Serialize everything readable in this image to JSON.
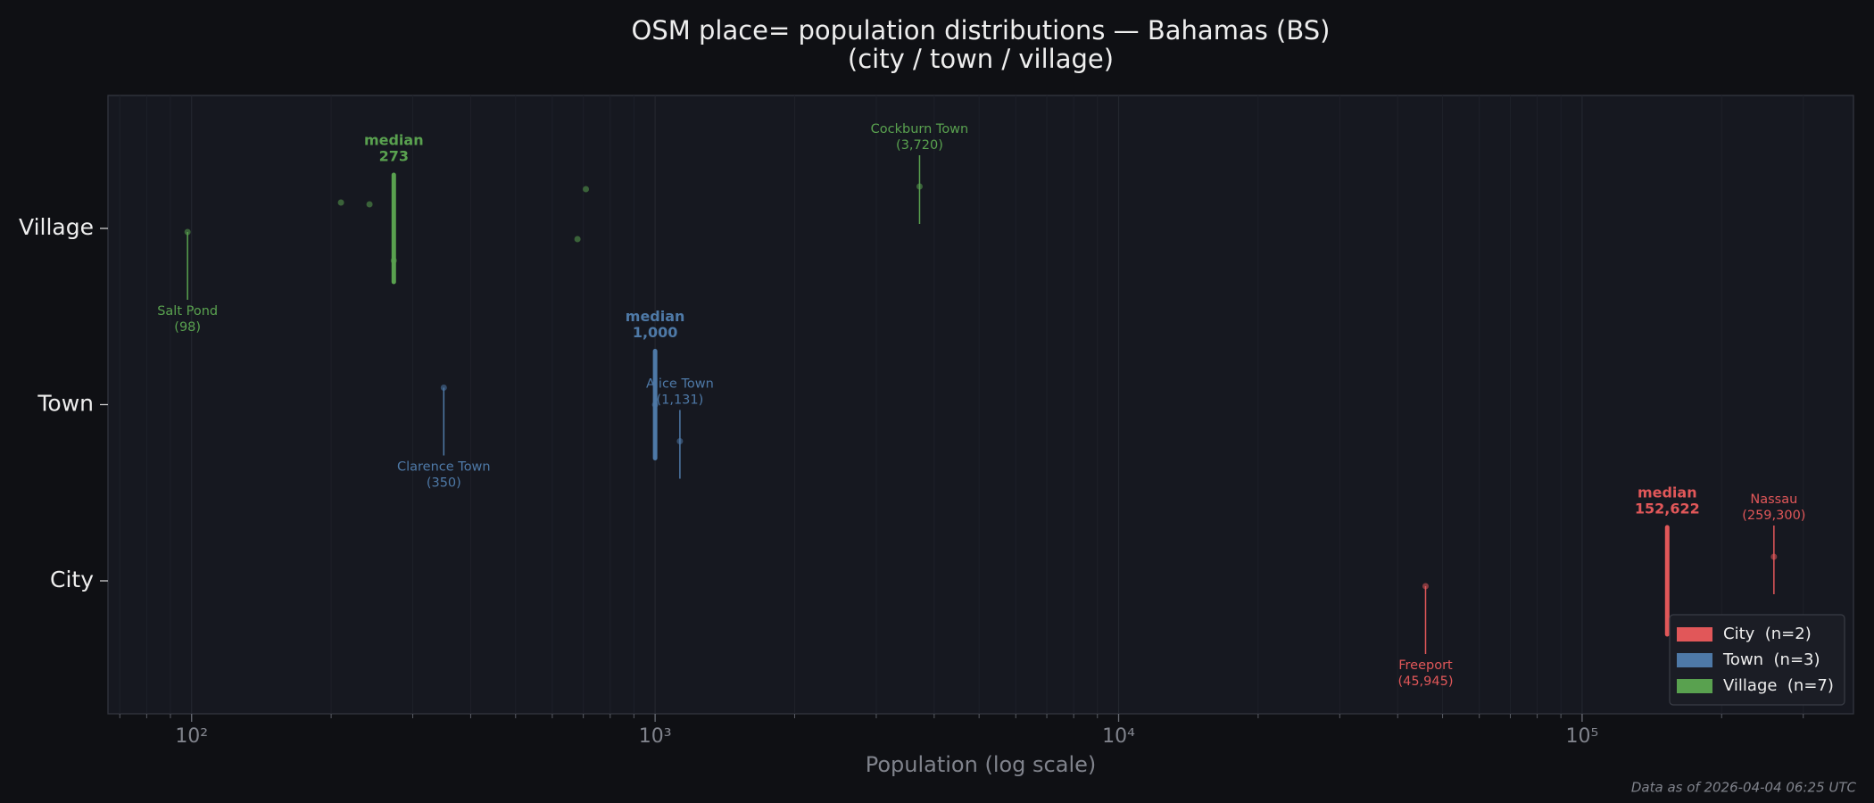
{
  "chart_data": {
    "type": "strip",
    "title": "OSM place= population distributions — Bahamas (BS)",
    "subtitle": "(city / town / village)",
    "x_label": "Population (log scale)",
    "footer": "Data as of 2026-04-04 06:25 UTC",
    "x_scale": "log",
    "xlim": [
      66,
      385000
    ],
    "xticks": [
      {
        "value": 100,
        "label": "10²"
      },
      {
        "value": 1000,
        "label": "10³"
      },
      {
        "value": 10000,
        "label": "10⁴"
      },
      {
        "value": 100000,
        "label": "10⁵"
      }
    ],
    "minor_xticks": [
      70,
      80,
      90,
      200,
      300,
      400,
      500,
      600,
      700,
      800,
      900,
      2000,
      3000,
      4000,
      5000,
      6000,
      7000,
      8000,
      9000,
      20000,
      30000,
      40000,
      50000,
      60000,
      70000,
      80000,
      90000,
      200000,
      300000
    ],
    "grid": true,
    "legend": "lower right",
    "categories": [
      "City",
      "Town",
      "Village"
    ],
    "median_text": "median",
    "series": [
      {
        "name": "City  (n=2)",
        "category": "City",
        "color": "#e15759",
        "values": [
          45945,
          259300
        ],
        "median": 152622,
        "median_label": "152,622",
        "annotations": [
          {
            "text": "Freeport",
            "value": 45945,
            "value_label": "(45,945)"
          },
          {
            "text": "Nassau",
            "value": 259300,
            "value_label": "(259,300)"
          }
        ]
      },
      {
        "name": "Town  (n=3)",
        "category": "Town",
        "color": "#4e79a7",
        "values": [
          350,
          1000,
          1131
        ],
        "median": 1000,
        "median_label": "1,000",
        "annotations": [
          {
            "text": "Clarence Town",
            "value": 350,
            "value_label": "(350)"
          },
          {
            "text": "Alice Town",
            "value": 1131,
            "value_label": "(1,131)"
          }
        ]
      },
      {
        "name": "Village  (n=7)",
        "category": "Village",
        "color": "#59a14f",
        "values": [
          98,
          210,
          242,
          273,
          680,
          709,
          3720
        ],
        "median": 273,
        "annotations": [
          {
            "text": "Salt Pond",
            "value": 98,
            "value_label": "(98)"
          },
          {
            "text": "Cockburn Town",
            "value": 3720,
            "value_label": "(3,720)"
          }
        ]
      }
    ]
  }
}
